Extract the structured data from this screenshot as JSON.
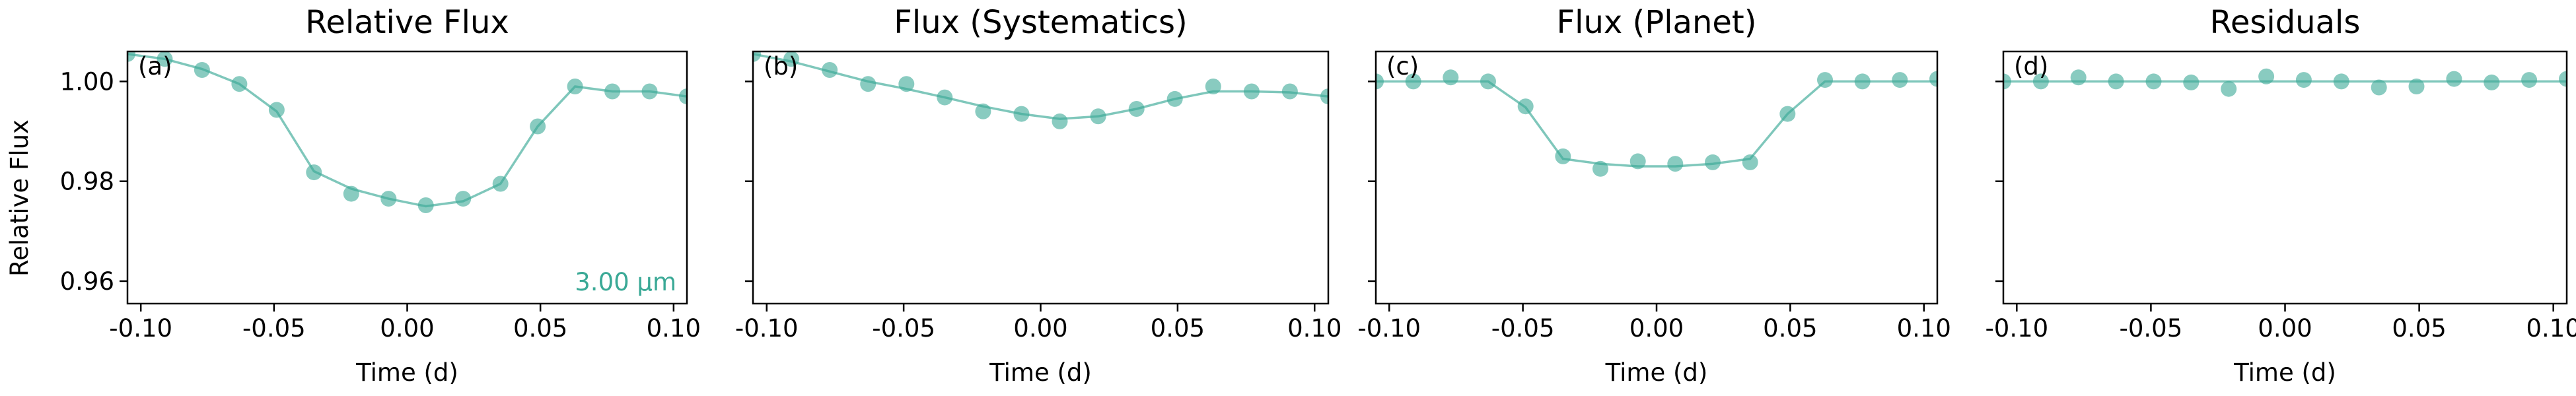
{
  "figure": {
    "ylabel": "Relative Flux",
    "accent_color": "#3aa996",
    "annotation": "3.00 µm"
  },
  "chart_data": [
    {
      "type": "line",
      "panel_letter": "(a)",
      "title": "Relative Flux",
      "xlabel": "Time (d)",
      "ylabel": "Relative Flux",
      "xlim": [
        -0.105,
        0.105
      ],
      "ylim": [
        0.9555,
        1.006
      ],
      "xticks": [
        "-0.10",
        "-0.05",
        "0.00",
        "0.05",
        "0.10"
      ],
      "yticks": [
        "0.96",
        "0.98",
        "1.00"
      ],
      "points": {
        "x": [
          -0.105,
          -0.091,
          -0.077,
          -0.063,
          -0.049,
          -0.035,
          -0.021,
          -0.007,
          0.007,
          0.021,
          0.035,
          0.049,
          0.063,
          0.077,
          0.091,
          0.105
        ],
        "y": [
          1.0055,
          1.0045,
          1.0023,
          0.9995,
          0.9943,
          0.9818,
          0.9775,
          0.9765,
          0.9752,
          0.9765,
          0.9795,
          0.991,
          0.999,
          0.998,
          0.998,
          0.997
        ]
      },
      "model": {
        "x": [
          -0.105,
          -0.091,
          -0.077,
          -0.063,
          -0.049,
          -0.035,
          -0.021,
          -0.007,
          0.007,
          0.021,
          0.035,
          0.049,
          0.063,
          0.077,
          0.091,
          0.105
        ],
        "y": [
          1.0055,
          1.0045,
          1.0025,
          0.9995,
          0.994,
          0.982,
          0.9785,
          0.9765,
          0.975,
          0.976,
          0.9795,
          0.991,
          0.999,
          0.998,
          0.998,
          0.997
        ]
      }
    },
    {
      "type": "line",
      "panel_letter": "(b)",
      "title": "Flux (Systematics)",
      "xlabel": "Time (d)",
      "xlim": [
        -0.105,
        0.105
      ],
      "ylim": [
        0.9555,
        1.006
      ],
      "xticks": [
        "-0.10",
        "-0.05",
        "0.00",
        "0.05",
        "0.10"
      ],
      "points": {
        "x": [
          -0.105,
          -0.091,
          -0.077,
          -0.063,
          -0.049,
          -0.035,
          -0.021,
          -0.007,
          0.007,
          0.021,
          0.035,
          0.049,
          0.063,
          0.077,
          0.091,
          0.105
        ],
        "y": [
          1.0055,
          1.0045,
          1.0023,
          0.9995,
          0.9995,
          0.9968,
          0.994,
          0.9935,
          0.992,
          0.993,
          0.9945,
          0.9965,
          0.999,
          0.998,
          0.998,
          0.997
        ]
      },
      "model": {
        "x": [
          -0.105,
          -0.091,
          -0.077,
          -0.063,
          -0.049,
          -0.035,
          -0.021,
          -0.007,
          0.007,
          0.021,
          0.035,
          0.049,
          0.063,
          0.077,
          0.091,
          0.105
        ],
        "y": [
          1.0055,
          1.004,
          1.002,
          1.0,
          0.9985,
          0.9968,
          0.995,
          0.9935,
          0.9925,
          0.993,
          0.9945,
          0.9965,
          0.998,
          0.998,
          0.9978,
          0.997
        ]
      }
    },
    {
      "type": "line",
      "panel_letter": "(c)",
      "title": "Flux (Planet)",
      "xlabel": "Time (d)",
      "xlim": [
        -0.105,
        0.105
      ],
      "ylim": [
        0.9555,
        1.006
      ],
      "xticks": [
        "-0.10",
        "-0.05",
        "0.00",
        "0.05",
        "0.10"
      ],
      "points": {
        "x": [
          -0.105,
          -0.091,
          -0.077,
          -0.063,
          -0.049,
          -0.035,
          -0.021,
          -0.007,
          0.007,
          0.021,
          0.035,
          0.049,
          0.063,
          0.077,
          0.091,
          0.105
        ],
        "y": [
          1.0,
          1.0,
          1.0008,
          1.0,
          0.995,
          0.985,
          0.9825,
          0.984,
          0.9835,
          0.9838,
          0.9838,
          0.9935,
          1.0003,
          1.0,
          1.0003,
          1.0005
        ]
      },
      "model": {
        "x": [
          -0.105,
          -0.091,
          -0.077,
          -0.063,
          -0.049,
          -0.035,
          -0.021,
          -0.007,
          0.007,
          0.021,
          0.035,
          0.049,
          0.063,
          0.077,
          0.091,
          0.105
        ],
        "y": [
          1.0,
          1.0,
          1.0,
          1.0,
          0.9948,
          0.9845,
          0.9835,
          0.983,
          0.983,
          0.9835,
          0.9845,
          0.9935,
          1.0,
          1.0,
          1.0,
          1.0
        ]
      }
    },
    {
      "type": "line",
      "panel_letter": "(d)",
      "title": "Residuals",
      "xlabel": "Time (d)",
      "xlim": [
        -0.105,
        0.105
      ],
      "ylim": [
        0.9555,
        1.006
      ],
      "xticks": [
        "-0.10",
        "-0.05",
        "0.00",
        "0.05",
        "0.10"
      ],
      "points": {
        "x": [
          -0.105,
          -0.091,
          -0.077,
          -0.063,
          -0.049,
          -0.035,
          -0.021,
          -0.007,
          0.007,
          0.021,
          0.035,
          0.049,
          0.063,
          0.077,
          0.091,
          0.105
        ],
        "y": [
          1.0,
          1.0,
          1.0008,
          1.0,
          1.0,
          0.9998,
          0.9985,
          1.001,
          1.0003,
          1.0,
          0.9988,
          0.999,
          1.0005,
          0.9998,
          1.0003,
          1.0005
        ]
      },
      "model": {
        "x": [
          -0.105,
          0.105
        ],
        "y": [
          1.0,
          1.0
        ]
      }
    }
  ]
}
